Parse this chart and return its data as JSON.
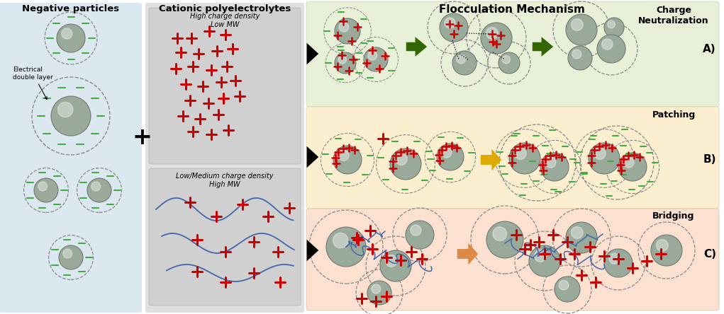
{
  "col1_title": "Negative particles",
  "col2_title": "Cationic polyelectrolytes",
  "col3_title": "Flocculation Mechanism",
  "label_A": "A)",
  "label_B": "B)",
  "label_C": "C)",
  "mech_A": "Charge\nNeutralization",
  "mech_B": "Patching",
  "mech_C": "Bridging",
  "high_density_label": "High charge density\nLow MW",
  "low_density_label": "Low/Medium charge density\nHigh MW",
  "edl_label": "Electrical\ndouble layer",
  "col1_bg": "#dce8f0",
  "col2_bg": "#e0e0e0",
  "mech_A_bg": "#e8f0d8",
  "mech_B_bg": "#fcefd0",
  "mech_C_bg": "#fce0d0",
  "particle_color": "#9aaa9a",
  "particle_edge": "#707870",
  "plus_color": "#cc0000",
  "minus_color": "#44aa44",
  "green_arrow": "#336600",
  "yellow_arrow": "#ddaa00",
  "orange_arrow": "#dd8844",
  "polymer_color": "#4466aa",
  "fig_w": 10.21,
  "fig_h": 4.44
}
